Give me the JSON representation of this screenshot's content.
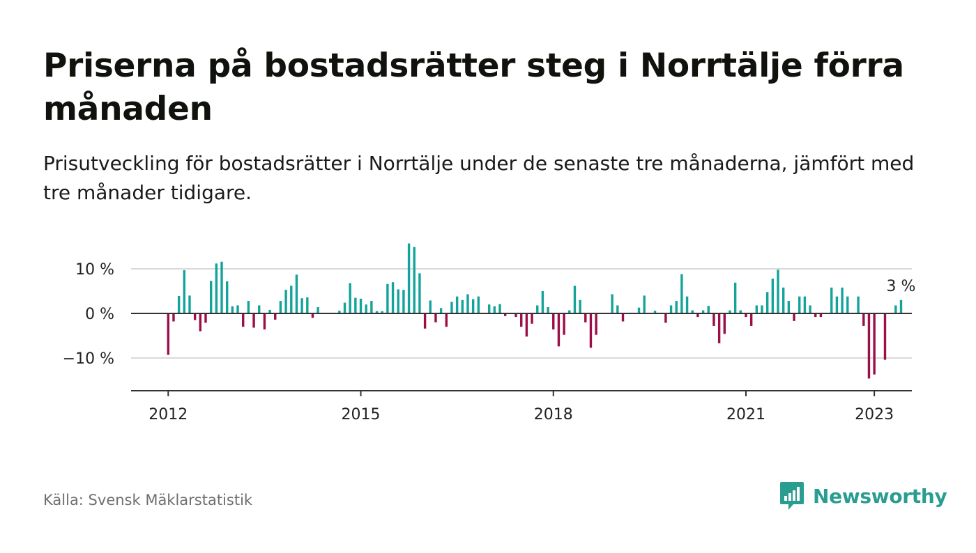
{
  "header": {
    "title": "Priserna på bostadsrätter steg i Norrtälje förra månaden",
    "subtitle": "Prisutveckling för bostadsrätter i Norrtälje under de senaste tre månaderna, jämfört med tre månader tidigare."
  },
  "footer": {
    "source": "Källa: Svensk Mäklarstatistik",
    "brand": "Newsworthy",
    "brand_icon": "bar-chart-speech-bubble-icon"
  },
  "colors": {
    "positive": "#13a39a",
    "negative": "#9b0e47",
    "grid": "#d9d9d9",
    "axis": "#333333",
    "brand": "#2a9d91"
  },
  "chart_data": {
    "type": "bar",
    "x_start": "2012-01",
    "frequency": "monthly",
    "ylim": [
      -17,
      17
    ],
    "yticks": [
      10,
      0,
      -10
    ],
    "ytick_labels": [
      "10 %",
      "0 %",
      "−10 %"
    ],
    "xticks": [
      "2012",
      "2015",
      "2018",
      "2021",
      "2023"
    ],
    "grid": true,
    "annotation": {
      "text": "3 %",
      "target": "last"
    },
    "values": [
      -9.3,
      -1.8,
      3.9,
      9.7,
      4.0,
      -1.5,
      -4.0,
      -2.1,
      7.3,
      11.2,
      11.6,
      7.2,
      1.6,
      1.8,
      -3.0,
      2.8,
      -3.2,
      1.8,
      -3.6,
      0.8,
      -1.4,
      2.8,
      5.3,
      6.2,
      8.7,
      3.4,
      3.6,
      -1.0,
      1.4,
      0.0,
      0.0,
      0.0,
      0.6,
      2.4,
      6.8,
      3.5,
      3.3,
      2.0,
      2.8,
      0.5,
      0.5,
      6.6,
      7.0,
      5.4,
      5.3,
      15.7,
      14.9,
      9.0,
      -3.4,
      2.9,
      -2.0,
      1.2,
      -3.0,
      2.6,
      3.8,
      3.0,
      4.3,
      3.2,
      3.8,
      0.0,
      2.0,
      1.6,
      2.1,
      -0.6,
      0.0,
      -0.8,
      -3.0,
      -5.2,
      -2.3,
      1.8,
      5.0,
      1.4,
      -3.6,
      -7.4,
      -4.8,
      0.7,
      6.2,
      3.0,
      -2.0,
      -7.7,
      -4.8,
      0.0,
      0.0,
      4.3,
      1.8,
      -1.8,
      0.0,
      0.0,
      1.3,
      4.0,
      0.0,
      0.6,
      0.0,
      -2.1,
      1.8,
      2.8,
      8.8,
      3.8,
      0.7,
      -0.8,
      0.7,
      1.7,
      -2.8,
      -6.7,
      -4.6,
      0.7,
      6.9,
      0.7,
      -0.8,
      -2.8,
      1.8,
      1.8,
      4.8,
      7.8,
      9.8,
      5.8,
      2.8,
      -1.7,
      3.8,
      3.8,
      1.8,
      -0.8,
      -0.8,
      0.0,
      5.8,
      3.8,
      5.8,
      3.8,
      0.0,
      3.8,
      -2.8,
      -14.6,
      -13.7,
      0.0,
      -10.4,
      0.0,
      1.8,
      3.0
    ]
  }
}
